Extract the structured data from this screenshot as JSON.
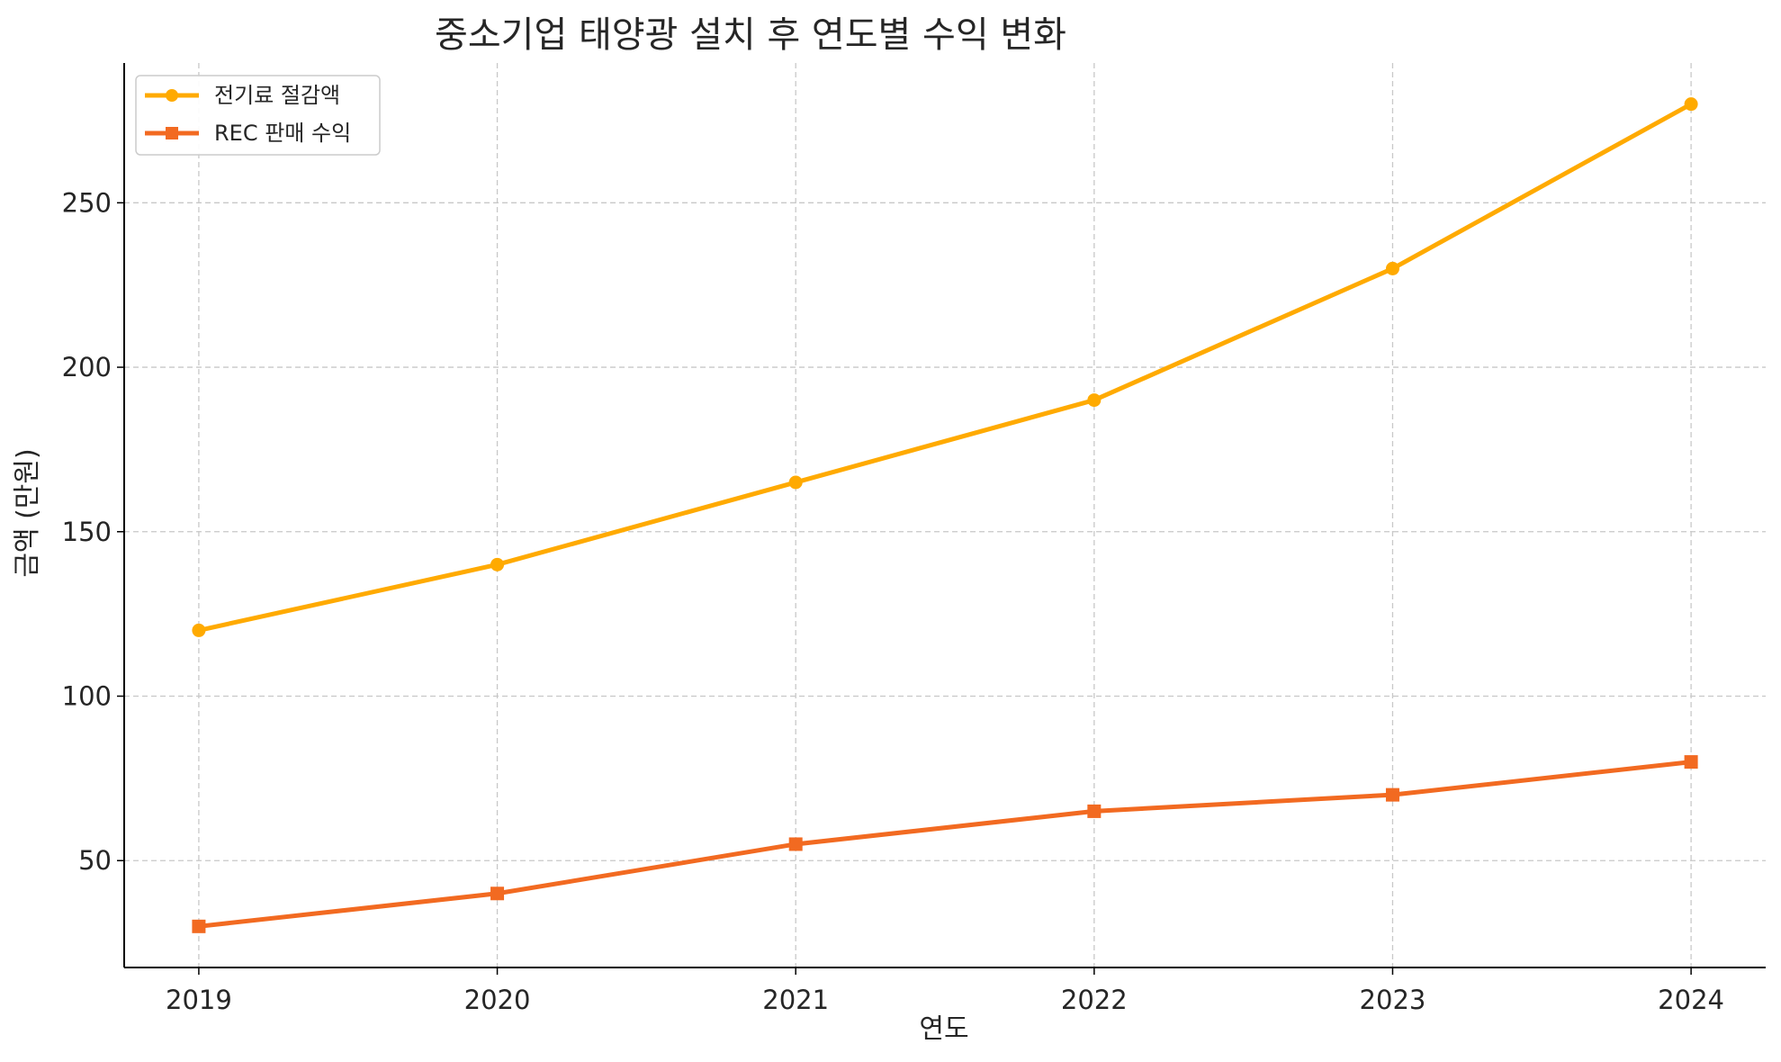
{
  "chart_data": {
    "type": "line",
    "title": "중소기업 태양광 설치 후 연도별 수익 변화",
    "xlabel": "연도",
    "ylabel": "금액 (만원)",
    "x": [
      2019,
      2020,
      2021,
      2022,
      2023,
      2024
    ],
    "x_tick_labels": [
      "2019",
      "2020",
      "2021",
      "2022",
      "2023",
      "2024"
    ],
    "y_ticks": [
      50,
      100,
      150,
      200,
      250
    ],
    "y_tick_labels": [
      "50",
      "100",
      "150",
      "200",
      "250"
    ],
    "xlim": [
      2018.75,
      2024.25
    ],
    "ylim": [
      17.5,
      292.5
    ],
    "grid": true,
    "legend_position": "top-left",
    "series": [
      {
        "name": "전기료 절감액",
        "values": [
          120,
          140,
          165,
          190,
          230,
          280
        ],
        "color": "#FFAA00",
        "marker": "circle"
      },
      {
        "name": "REC 판매 수익",
        "values": [
          30,
          40,
          55,
          65,
          70,
          80
        ],
        "color": "#F26A21",
        "marker": "square"
      }
    ]
  }
}
